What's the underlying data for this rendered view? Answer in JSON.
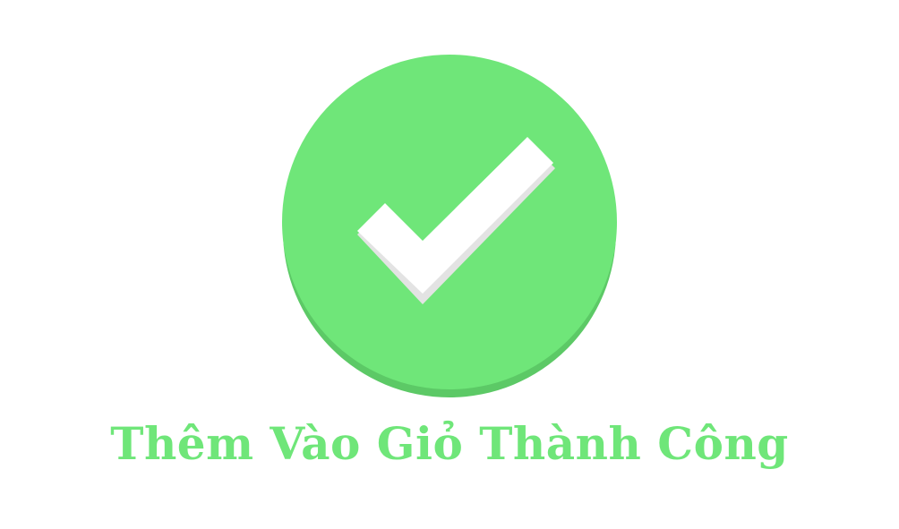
{
  "message": {
    "text": "Thêm Vào Giỏ Thành Công"
  },
  "icon": {
    "name": "check-circle-icon"
  },
  "colors": {
    "background": "#ffffff",
    "circle": "#6fe679",
    "circle_shadow": "#5cc966",
    "check": "#ffffff",
    "check_shadow": "#e3e3e3",
    "text": "#6fe679"
  }
}
